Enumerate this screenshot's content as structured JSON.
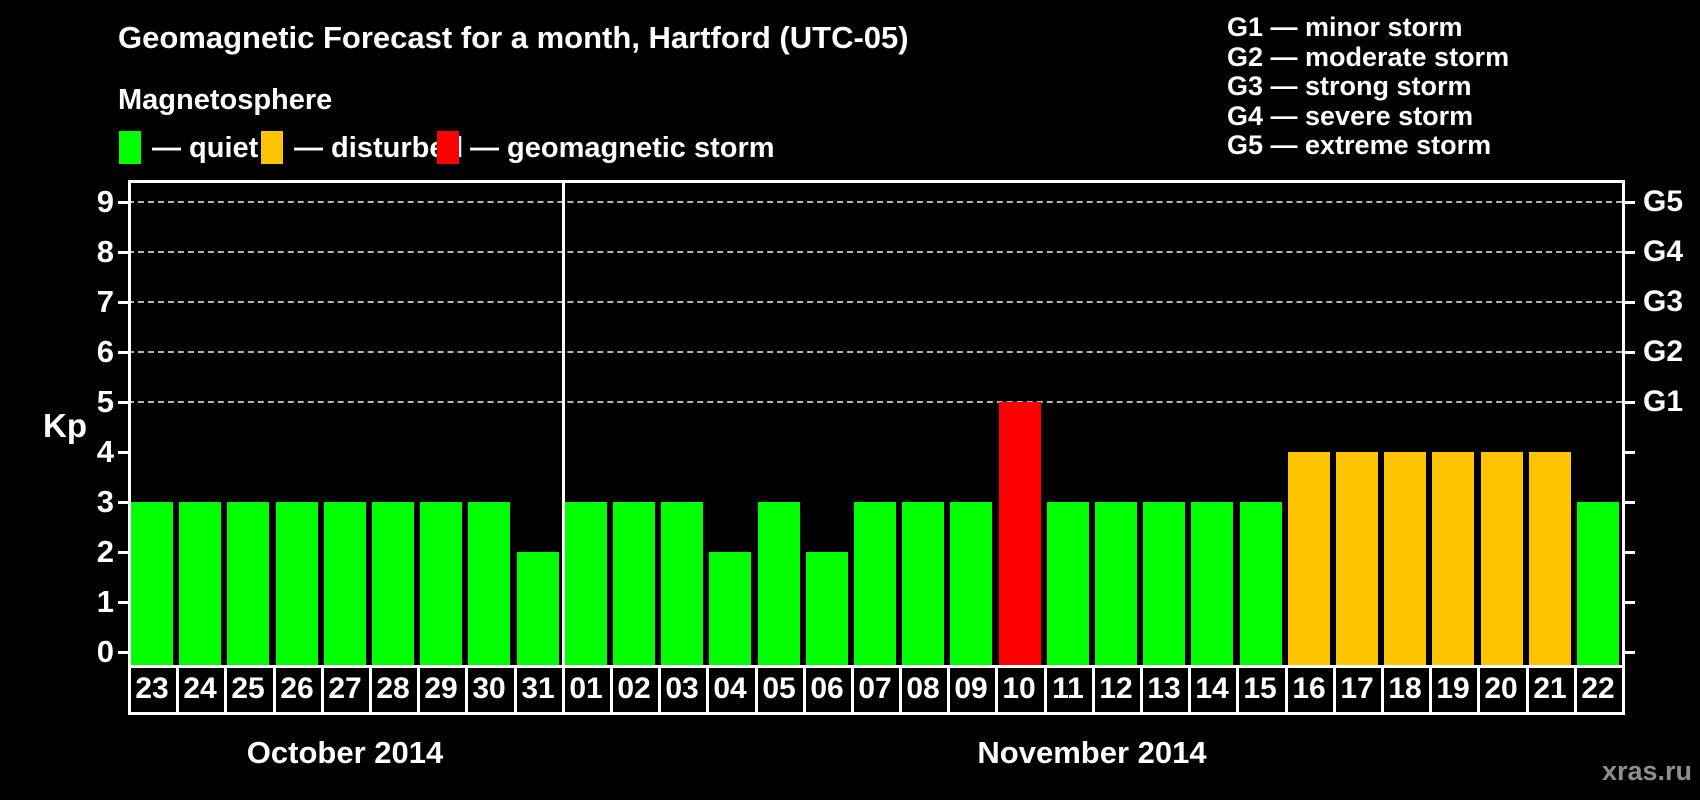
{
  "title": "Geomagnetic Forecast for a month, Hartford (UTC-05)",
  "magnetosphere_legend": {
    "heading": "Magnetosphere",
    "items": [
      {
        "status": "quiet",
        "label": "— quiet",
        "color": "#00ff00"
      },
      {
        "status": "disturbed",
        "label": "— disturbed",
        "color": "#ffc400"
      },
      {
        "status": "storm",
        "label": "— geomagnetic storm",
        "color": "#ff0000"
      }
    ]
  },
  "g_scale_legend": [
    "G1 — minor storm",
    "G2 — moderate storm",
    "G3 — strong storm",
    "G4 — severe storm",
    "G5 — extreme storm"
  ],
  "watermark": "xras.ru",
  "chart_data": {
    "type": "bar",
    "title": "Geomagnetic Forecast for a month, Hartford (UTC-05)",
    "ylabel": "Kp",
    "ylim": [
      0,
      9
    ],
    "y_ticks": [
      0,
      1,
      2,
      3,
      4,
      5,
      6,
      7,
      8,
      9
    ],
    "gridline_levels": [
      5,
      6,
      7,
      8,
      9
    ],
    "grid": "dashed horizontal at Kp 5-9 only",
    "legend_position": "top",
    "right_axis_labels": [
      {
        "kp": 5,
        "label": "G1"
      },
      {
        "kp": 6,
        "label": "G2"
      },
      {
        "kp": 7,
        "label": "G3"
      },
      {
        "kp": 8,
        "label": "G4"
      },
      {
        "kp": 9,
        "label": "G5"
      }
    ],
    "status_colors": {
      "quiet": "#00ff00",
      "disturbed": "#ffc400",
      "storm": "#ff0000"
    },
    "months": [
      {
        "label": "October 2014",
        "points": [
          {
            "day": "23",
            "kp": 3,
            "status": "quiet"
          },
          {
            "day": "24",
            "kp": 3,
            "status": "quiet"
          },
          {
            "day": "25",
            "kp": 3,
            "status": "quiet"
          },
          {
            "day": "26",
            "kp": 3,
            "status": "quiet"
          },
          {
            "day": "27",
            "kp": 3,
            "status": "quiet"
          },
          {
            "day": "28",
            "kp": 3,
            "status": "quiet"
          },
          {
            "day": "29",
            "kp": 3,
            "status": "quiet"
          },
          {
            "day": "30",
            "kp": 3,
            "status": "quiet"
          },
          {
            "day": "31",
            "kp": 2,
            "status": "quiet"
          }
        ]
      },
      {
        "label": "November 2014",
        "points": [
          {
            "day": "01",
            "kp": 3,
            "status": "quiet"
          },
          {
            "day": "02",
            "kp": 3,
            "status": "quiet"
          },
          {
            "day": "03",
            "kp": 3,
            "status": "quiet"
          },
          {
            "day": "04",
            "kp": 2,
            "status": "quiet"
          },
          {
            "day": "05",
            "kp": 3,
            "status": "quiet"
          },
          {
            "day": "06",
            "kp": 2,
            "status": "quiet"
          },
          {
            "day": "07",
            "kp": 3,
            "status": "quiet"
          },
          {
            "day": "08",
            "kp": 3,
            "status": "quiet"
          },
          {
            "day": "09",
            "kp": 3,
            "status": "quiet"
          },
          {
            "day": "10",
            "kp": 5,
            "status": "storm"
          },
          {
            "day": "11",
            "kp": 3,
            "status": "quiet"
          },
          {
            "day": "12",
            "kp": 3,
            "status": "quiet"
          },
          {
            "day": "13",
            "kp": 3,
            "status": "quiet"
          },
          {
            "day": "14",
            "kp": 3,
            "status": "quiet"
          },
          {
            "day": "15",
            "kp": 3,
            "status": "quiet"
          },
          {
            "day": "16",
            "kp": 4,
            "status": "disturbed"
          },
          {
            "day": "17",
            "kp": 4,
            "status": "disturbed"
          },
          {
            "day": "18",
            "kp": 4,
            "status": "disturbed"
          },
          {
            "day": "19",
            "kp": 4,
            "status": "disturbed"
          },
          {
            "day": "20",
            "kp": 4,
            "status": "disturbed"
          },
          {
            "day": "21",
            "kp": 4,
            "status": "disturbed"
          },
          {
            "day": "22",
            "kp": 3,
            "status": "quiet"
          }
        ]
      }
    ]
  }
}
